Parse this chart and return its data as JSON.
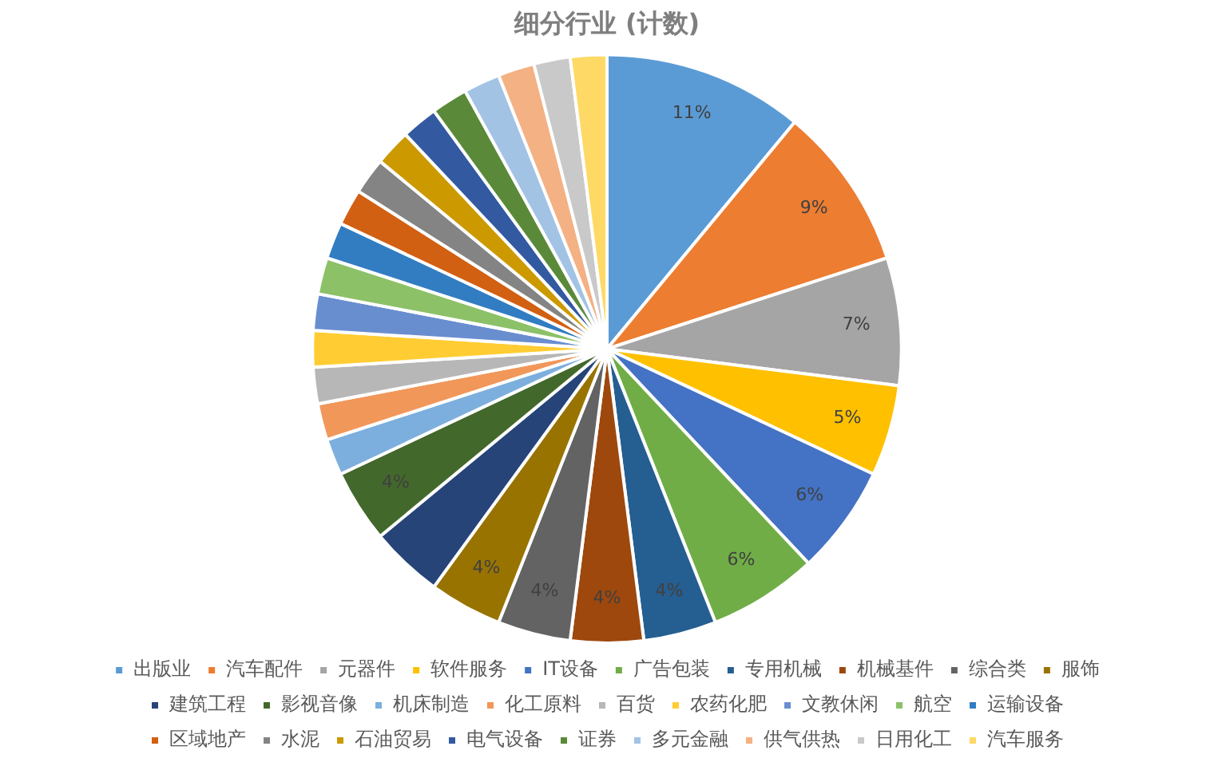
{
  "chart_data": {
    "type": "pie",
    "title": "细分行业 (计数)",
    "categories": [
      "出版业",
      "汽车配件",
      "元器件",
      "软件服务",
      "IT设备",
      "广告包装",
      "专用机械",
      "机械基件",
      "综合类",
      "服饰",
      "建筑工程",
      "影视音像",
      "机床制造",
      "化工原料",
      "百货",
      "农药化肥",
      "文教休闲",
      "航空",
      "运输设备",
      "区域地产",
      "水泥",
      "石油贸易",
      "电气设备",
      "证券",
      "多元金融",
      "供气供热",
      "日用化工",
      "汽车服务"
    ],
    "values": [
      11,
      9,
      7,
      5,
      6,
      6,
      4,
      4,
      4,
      4,
      4,
      4,
      2,
      2,
      2,
      2,
      2,
      2,
      2,
      2,
      2,
      2,
      2,
      2,
      2,
      2,
      2,
      2
    ],
    "value_labels": [
      "11%",
      "9%",
      "7%",
      "5%",
      "6%",
      "6%",
      "4%",
      "4%",
      "4%",
      "4%",
      null,
      "4%",
      null,
      null,
      null,
      null,
      null,
      null,
      null,
      null,
      null,
      null,
      null,
      null,
      null,
      null,
      null,
      null
    ],
    "colors": [
      "#5b9bd5",
      "#ed7d31",
      "#a5a5a5",
      "#ffc000",
      "#4472c4",
      "#70ad47",
      "#255e91",
      "#9e480e",
      "#636363",
      "#997300",
      "#264478",
      "#43682b",
      "#7cafdd",
      "#f1975a",
      "#b7b7b7",
      "#ffcd33",
      "#698ed0",
      "#8cc168",
      "#327dc2",
      "#d26012",
      "#848484",
      "#cc9a00",
      "#335aa1",
      "#5a8a39",
      "#a3c3e5",
      "#f4b183",
      "#c9c9c9",
      "#ffd966"
    ],
    "legend": "bottom"
  }
}
